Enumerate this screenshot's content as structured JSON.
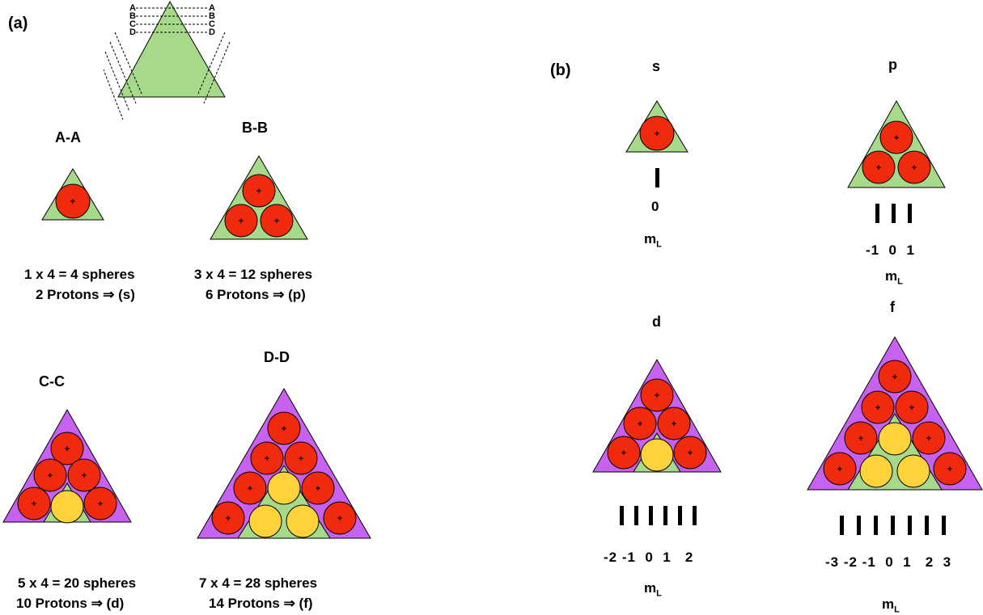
{
  "panel_a": {
    "label": "(a)",
    "key_letters": [
      "A",
      "B",
      "C",
      "D"
    ],
    "sections": [
      {
        "id": "a-a",
        "title": "A-A",
        "line1": "1 x 4 = 4 spheres",
        "line2": "2 Protons ⇒ (s)"
      },
      {
        "id": "b-b",
        "title": "B-B",
        "line1": "3 x 4 = 12 spheres",
        "line2": "6 Protons ⇒ (p)"
      },
      {
        "id": "c-c",
        "title": "C-C",
        "line1": "5 x 4 = 20 spheres",
        "line2": "10 Protons  ⇒ (d)"
      },
      {
        "id": "d-d",
        "title": "D-D",
        "line1": "7 x 4 = 28 spheres",
        "line2": "14 Protons ⇒ (f)"
      }
    ]
  },
  "panel_b": {
    "label": "(b)",
    "ml_main": "m",
    "ml_sub": "L",
    "orbitals": [
      {
        "id": "s",
        "name": "s",
        "values": "0"
      },
      {
        "id": "p",
        "name": "p",
        "values": "-1  0  1"
      },
      {
        "id": "d",
        "name": "d",
        "values": "-2 -1  0  1   2"
      },
      {
        "id": "f",
        "name": "f",
        "values": "-3 -2 -1  0  1   2  3"
      }
    ]
  },
  "colors": {
    "green": "#a6d98a",
    "purple": "#c661f0",
    "red": "#f02a0c",
    "yellow": "#fdd23a",
    "outline": "#000000"
  }
}
